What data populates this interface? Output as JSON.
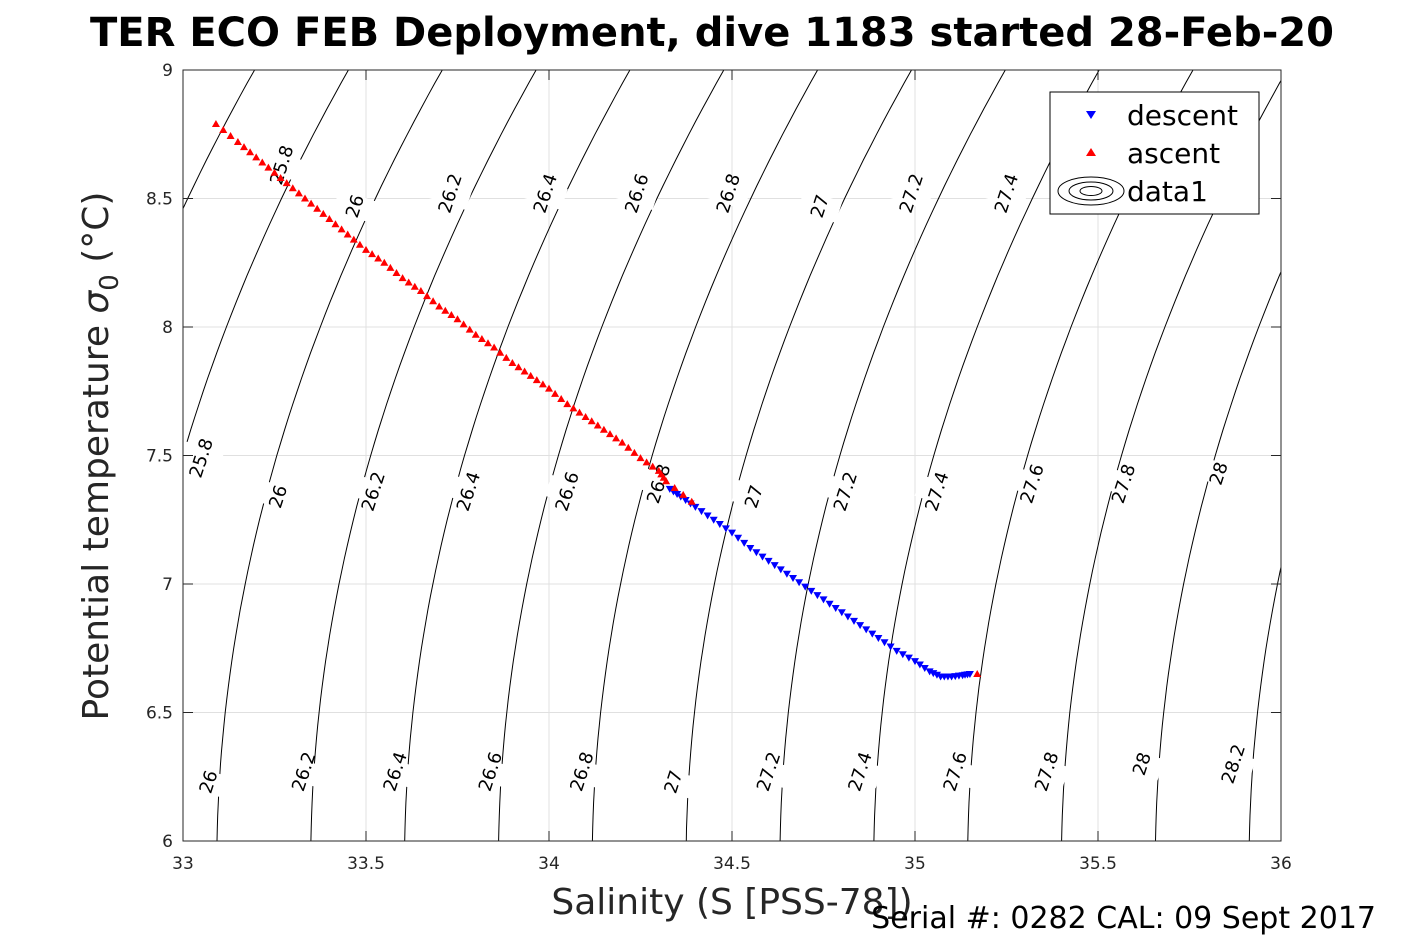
{
  "chart_data": {
    "type": "scatter",
    "title": "TER ECO FEB Deployment, dive 1183 started 28-Feb-20",
    "xlabel": "Salinity (S [PSS-78])",
    "ylabel_main": "Potential temperature ",
    "ylabel_sym": "σ",
    "ylabel_sub": "0",
    "ylabel_unit": " (°C)",
    "xlim": [
      33,
      36
    ],
    "ylim": [
      6,
      9
    ],
    "xticks": [
      "33",
      "33.5",
      "34",
      "34.5",
      "35",
      "35.5",
      "36"
    ],
    "yticks": [
      "6",
      "6.5",
      "7",
      "7.5",
      "8",
      "8.5",
      "9"
    ],
    "grid": true,
    "legend_position": "top-right",
    "legend": [
      "descent",
      "ascent",
      "data1"
    ],
    "series": [
      {
        "name": "descent",
        "marker": "triangle-down",
        "color": "#0000ff",
        "points": [
          [
            34.33,
            7.37
          ],
          [
            34.36,
            7.34
          ],
          [
            34.4,
            7.3
          ],
          [
            34.45,
            7.25
          ],
          [
            34.5,
            7.2
          ],
          [
            34.55,
            7.14
          ],
          [
            34.6,
            7.09
          ],
          [
            34.65,
            7.04
          ],
          [
            34.7,
            6.99
          ],
          [
            34.75,
            6.94
          ],
          [
            34.8,
            6.89
          ],
          [
            34.85,
            6.84
          ],
          [
            34.9,
            6.79
          ],
          [
            34.95,
            6.74
          ],
          [
            35.0,
            6.7
          ],
          [
            35.04,
            6.66
          ],
          [
            35.07,
            6.64
          ],
          [
            35.1,
            6.64
          ],
          [
            35.13,
            6.645
          ],
          [
            35.15,
            6.65
          ]
        ]
      },
      {
        "name": "ascent",
        "marker": "triangle-up",
        "color": "#ff0000",
        "points": [
          [
            33.09,
            8.79
          ],
          [
            33.15,
            8.72
          ],
          [
            33.2,
            8.66
          ],
          [
            33.25,
            8.6
          ],
          [
            33.3,
            8.54
          ],
          [
            33.35,
            8.48
          ],
          [
            33.4,
            8.42
          ],
          [
            33.45,
            8.36
          ],
          [
            33.5,
            8.3
          ],
          [
            33.55,
            8.25
          ],
          [
            33.6,
            8.19
          ],
          [
            33.65,
            8.14
          ],
          [
            33.7,
            8.08
          ],
          [
            33.75,
            8.03
          ],
          [
            33.8,
            7.97
          ],
          [
            33.85,
            7.92
          ],
          [
            33.9,
            7.86
          ],
          [
            33.95,
            7.81
          ],
          [
            34.0,
            7.76
          ],
          [
            34.05,
            7.7
          ],
          [
            34.1,
            7.65
          ],
          [
            34.15,
            7.6
          ],
          [
            34.2,
            7.55
          ],
          [
            34.25,
            7.49
          ],
          [
            34.3,
            7.44
          ],
          [
            34.32,
            7.4
          ],
          [
            34.39,
            7.32
          ],
          [
            35.17,
            6.65
          ]
        ]
      }
    ],
    "contour_labels": [
      [
        33.05,
        7.49,
        "25.8"
      ],
      [
        33.27,
        8.63,
        "25.8"
      ],
      [
        33.07,
        6.23,
        "26"
      ],
      [
        33.26,
        7.34,
        "26"
      ],
      [
        33.47,
        8.47,
        "26"
      ],
      [
        33.33,
        6.27,
        "26.2"
      ],
      [
        33.52,
        7.36,
        "26.2"
      ],
      [
        33.73,
        8.52,
        "26.2"
      ],
      [
        33.58,
        6.27,
        "26.4"
      ],
      [
        33.78,
        7.36,
        "26.4"
      ],
      [
        33.99,
        8.52,
        "26.4"
      ],
      [
        33.84,
        6.27,
        "26.6"
      ],
      [
        34.05,
        7.36,
        "26.6"
      ],
      [
        34.24,
        8.52,
        "26.6"
      ],
      [
        34.09,
        6.27,
        "26.8"
      ],
      [
        34.3,
        7.39,
        "26.8"
      ],
      [
        34.49,
        8.52,
        "26.8"
      ],
      [
        34.34,
        6.23,
        "27"
      ],
      [
        34.56,
        7.34,
        "27"
      ],
      [
        34.74,
        8.47,
        "27"
      ],
      [
        34.6,
        6.27,
        "27.2"
      ],
      [
        34.81,
        7.36,
        "27.2"
      ],
      [
        34.99,
        8.52,
        "27.2"
      ],
      [
        34.85,
        6.27,
        "27.4"
      ],
      [
        35.06,
        7.36,
        "27.4"
      ],
      [
        35.25,
        8.52,
        "27.4"
      ],
      [
        35.11,
        6.27,
        "27.6"
      ],
      [
        35.32,
        7.39,
        "27.6"
      ],
      [
        35.36,
        6.27,
        "27.8"
      ],
      [
        35.57,
        7.39,
        "27.8"
      ],
      [
        35.62,
        6.3,
        "28"
      ],
      [
        35.83,
        7.43,
        "28"
      ],
      [
        35.87,
        6.3,
        "28.2"
      ]
    ]
  },
  "footer": {
    "serial": "Serial #: 0282  CAL: 09 Sept 2017"
  }
}
